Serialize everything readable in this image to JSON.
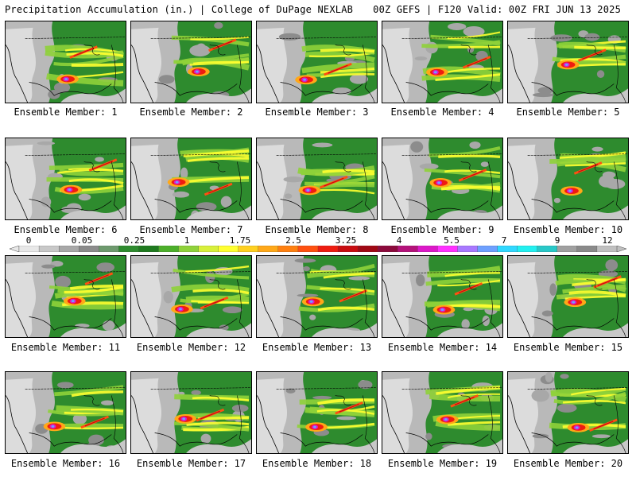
{
  "header": {
    "left_title": "Precipitation Accumulation (in.) | College of DuPage NEXLAB",
    "right_title": "00Z GEFS | F120 Valid: 00Z FRI JUN 13 2025"
  },
  "members": [
    {
      "label": "Ensemble Member: 1"
    },
    {
      "label": "Ensemble Member: 2"
    },
    {
      "label": "Ensemble Member: 3"
    },
    {
      "label": "Ensemble Member: 4"
    },
    {
      "label": "Ensemble Member: 5"
    },
    {
      "label": "Ensemble Member: 6"
    },
    {
      "label": "Ensemble Member: 7"
    },
    {
      "label": "Ensemble Member: 8"
    },
    {
      "label": "Ensemble Member: 9"
    },
    {
      "label": "Ensemble Member: 10"
    },
    {
      "label": "Ensemble Member: 11"
    },
    {
      "label": "Ensemble Member: 12"
    },
    {
      "label": "Ensemble Member: 13"
    },
    {
      "label": "Ensemble Member: 14"
    },
    {
      "label": "Ensemble Member: 15"
    },
    {
      "label": "Ensemble Member: 16"
    },
    {
      "label": "Ensemble Member: 17"
    },
    {
      "label": "Ensemble Member: 18"
    },
    {
      "label": "Ensemble Member: 19"
    },
    {
      "label": "Ensemble Member: 20"
    }
  ],
  "colorbar": {
    "labels": [
      "0",
      "0.05",
      "0.25",
      "1",
      "1.75",
      "2.5",
      "3.25",
      "4",
      "5.5",
      "7",
      "9",
      "12"
    ],
    "colors": [
      "#e8e8e8",
      "#c8c8c8",
      "#a8a8a8",
      "#8c8c8c",
      "#6e9a6e",
      "#2e8b2e",
      "#1f7a1f",
      "#4caf2a",
      "#8fd23a",
      "#d8f03a",
      "#ffff30",
      "#ffd020",
      "#ffa818",
      "#ff8010",
      "#ff5010",
      "#ee1c10",
      "#c80c10",
      "#a00814",
      "#8c0a3c",
      "#b4127a",
      "#dc18c8",
      "#ff30ff",
      "#a878ff",
      "#6ea0ff",
      "#30d8ff",
      "#22f0f0",
      "#28c8c8",
      "#a0a0a0",
      "#8a8a8a",
      "#c0c0c0"
    ]
  }
}
